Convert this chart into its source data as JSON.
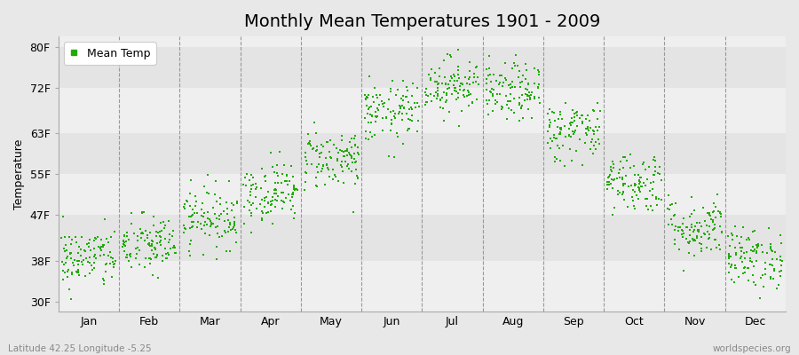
{
  "title": "Monthly Mean Temperatures 1901 - 2009",
  "ylabel": "Temperature",
  "yticks": [
    30,
    38,
    47,
    55,
    63,
    72,
    80
  ],
  "ytick_labels": [
    "30F",
    "38F",
    "47F",
    "55F",
    "63F",
    "72F",
    "80F"
  ],
  "ylim": [
    28,
    82
  ],
  "months": [
    "Jan",
    "Feb",
    "Mar",
    "Apr",
    "May",
    "Jun",
    "Jul",
    "Aug",
    "Sep",
    "Oct",
    "Nov",
    "Dec"
  ],
  "mean_temps_F": [
    38.5,
    41.0,
    46.5,
    51.5,
    58.0,
    67.0,
    72.5,
    71.0,
    63.5,
    53.5,
    44.5,
    38.5
  ],
  "spread_F": [
    3.0,
    3.0,
    3.0,
    3.0,
    3.0,
    3.0,
    2.8,
    2.8,
    3.0,
    3.0,
    3.0,
    3.0
  ],
  "n_years": 109,
  "dot_color": "#22aa00",
  "dot_size": 3,
  "background_color": "#e8e8e8",
  "plot_bg_light": "#efefef",
  "plot_bg_dark": "#e4e4e4",
  "grid_color": "#999999",
  "title_fontsize": 14,
  "label_fontsize": 9,
  "tick_fontsize": 9,
  "legend_label": "Mean Temp",
  "bottom_left_text": "Latitude 42.25 Longitude -5.25",
  "bottom_right_text": "worldspecies.org",
  "seed": 42
}
